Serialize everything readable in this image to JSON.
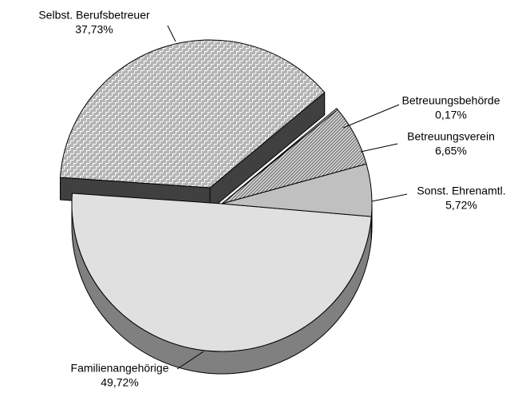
{
  "chart_data": {
    "type": "pie",
    "categories": [
      "Familienangehörige",
      "Selbst. Berufsbetreuer",
      "Betreuungsbehörde",
      "Betreuungsverein",
      "Sonst. Ehrenamtl."
    ],
    "values": [
      49.72,
      37.73,
      0.17,
      6.65,
      5.72
    ],
    "value_labels": [
      "49,72%",
      "37,73%",
      "0,17%",
      "6,65%",
      "5,72%"
    ],
    "colors": [
      "#e0e0e0",
      "#b4b4b4",
      "#ffffff",
      "#b0b0b0",
      "#c0c0c0"
    ],
    "side_colors": [
      "#808080",
      "#404040",
      "#808080",
      "#707070",
      "#808080"
    ],
    "patterns": [
      "none",
      "bricks",
      "none",
      "diagonal",
      "none"
    ],
    "exploded": [
      false,
      true,
      false,
      false,
      false
    ]
  }
}
